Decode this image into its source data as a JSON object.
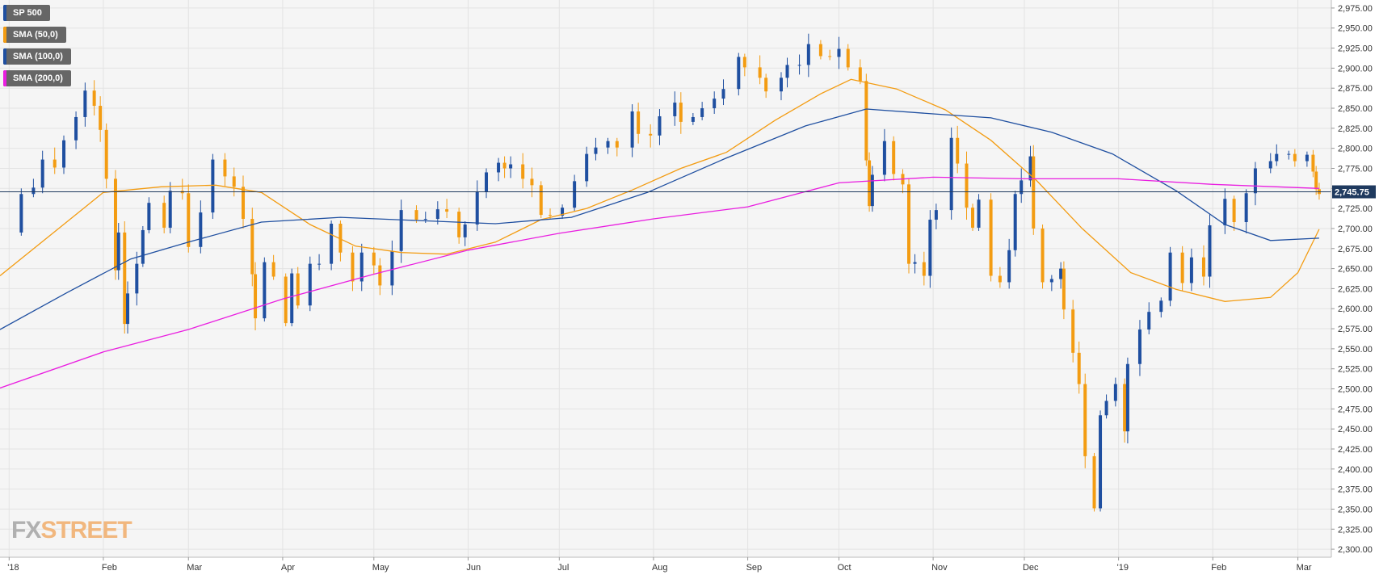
{
  "legend": [
    {
      "label": "SP 500",
      "color": "#1f4fa0"
    },
    {
      "label": "SMA (50,0)",
      "color": "#f39c12"
    },
    {
      "label": "SMA (100,0)",
      "color": "#1f4fa0"
    },
    {
      "label": "SMA (200,0)",
      "color": "#e91ee0"
    }
  ],
  "logo": {
    "fx": "FX",
    "street": "STREET"
  },
  "price_label": "2,745.75",
  "colors": {
    "up": "#1f4fa0",
    "down": "#f39c12",
    "sma50": "#f39c12",
    "sma100": "#1f4fa0",
    "sma200": "#e91ee0",
    "background": "#f5f5f5",
    "grid": "#e3e3e3",
    "price_line": "#1f3a5f"
  },
  "chart_data": {
    "type": "candlestick",
    "title": "",
    "ylim": [
      2290,
      2985
    ],
    "y_ticks": [
      "2,975.00",
      "2,950.00",
      "2,925.00",
      "2,900.00",
      "2,875.00",
      "2,850.00",
      "2,825.00",
      "2,800.00",
      "2,775.00",
      "2,750.00",
      "2,725.00",
      "2,700.00",
      "2,675.00",
      "2,650.00",
      "2,625.00",
      "2,600.00",
      "2,575.00",
      "2,550.00",
      "2,525.00",
      "2,500.00",
      "2,475.00",
      "2,450.00",
      "2,425.00",
      "2,400.00",
      "2,375.00",
      "2,350.00",
      "2,325.00",
      "2,300.00"
    ],
    "x_ticks": [
      {
        "label": "'18",
        "date": "2018-01-01"
      },
      {
        "label": "Feb",
        "date": "2018-02-01"
      },
      {
        "label": "Mar",
        "date": "2018-03-01"
      },
      {
        "label": "Apr",
        "date": "2018-04-01"
      },
      {
        "label": "May",
        "date": "2018-05-01"
      },
      {
        "label": "Jun",
        "date": "2018-06-01"
      },
      {
        "label": "Jul",
        "date": "2018-07-01"
      },
      {
        "label": "Aug",
        "date": "2018-08-01"
      },
      {
        "label": "Sep",
        "date": "2018-09-01"
      },
      {
        "label": "Oct",
        "date": "2018-10-01"
      },
      {
        "label": "Nov",
        "date": "2018-11-01"
      },
      {
        "label": "Dec",
        "date": "2018-12-01"
      },
      {
        "label": "'19",
        "date": "2019-01-01"
      },
      {
        "label": "Feb",
        "date": "2019-02-01"
      },
      {
        "label": "Mar",
        "date": "2019-03-01"
      }
    ],
    "x_range": [
      "2017-12-29",
      "2019-03-12"
    ],
    "last_price": 2745.75,
    "close_series": {
      "name": "SP 500",
      "points": [
        [
          "2018-01-02",
          2695
        ],
        [
          "2018-01-05",
          2743
        ],
        [
          "2018-01-09",
          2751
        ],
        [
          "2018-01-12",
          2786
        ],
        [
          "2018-01-16",
          2776
        ],
        [
          "2018-01-19",
          2810
        ],
        [
          "2018-01-23",
          2839
        ],
        [
          "2018-01-26",
          2872
        ],
        [
          "2018-01-29",
          2853
        ],
        [
          "2018-01-31",
          2823
        ],
        [
          "2018-02-02",
          2762
        ],
        [
          "2018-02-05",
          2648
        ],
        [
          "2018-02-06",
          2695
        ],
        [
          "2018-02-08",
          2581
        ],
        [
          "2018-02-09",
          2619
        ],
        [
          "2018-02-12",
          2656
        ],
        [
          "2018-02-14",
          2698
        ],
        [
          "2018-02-16",
          2732
        ],
        [
          "2018-02-21",
          2701
        ],
        [
          "2018-02-23",
          2747
        ],
        [
          "2018-02-27",
          2744
        ],
        [
          "2018-03-01",
          2677
        ],
        [
          "2018-03-05",
          2720
        ],
        [
          "2018-03-09",
          2786
        ],
        [
          "2018-03-13",
          2765
        ],
        [
          "2018-03-16",
          2752
        ],
        [
          "2018-03-19",
          2712
        ],
        [
          "2018-03-22",
          2643
        ],
        [
          "2018-03-23",
          2588
        ],
        [
          "2018-03-26",
          2658
        ],
        [
          "2018-03-29",
          2640
        ],
        [
          "2018-04-02",
          2582
        ],
        [
          "2018-04-04",
          2644
        ],
        [
          "2018-04-06",
          2604
        ],
        [
          "2018-04-10",
          2656
        ],
        [
          "2018-04-13",
          2656
        ],
        [
          "2018-04-17",
          2706
        ],
        [
          "2018-04-20",
          2670
        ],
        [
          "2018-04-24",
          2634
        ],
        [
          "2018-04-27",
          2670
        ],
        [
          "2018-05-01",
          2654
        ],
        [
          "2018-05-03",
          2629
        ],
        [
          "2018-05-07",
          2672
        ],
        [
          "2018-05-10",
          2723
        ],
        [
          "2018-05-15",
          2711
        ],
        [
          "2018-05-18",
          2712
        ],
        [
          "2018-05-22",
          2724
        ],
        [
          "2018-05-25",
          2721
        ],
        [
          "2018-05-29",
          2689
        ],
        [
          "2018-05-31",
          2705
        ],
        [
          "2018-06-04",
          2746
        ],
        [
          "2018-06-07",
          2770
        ],
        [
          "2018-06-11",
          2782
        ],
        [
          "2018-06-13",
          2775
        ],
        [
          "2018-06-15",
          2780
        ],
        [
          "2018-06-19",
          2762
        ],
        [
          "2018-06-22",
          2754
        ],
        [
          "2018-06-25",
          2717
        ],
        [
          "2018-06-28",
          2716
        ],
        [
          "2018-07-02",
          2726
        ],
        [
          "2018-07-06",
          2759
        ],
        [
          "2018-07-10",
          2793
        ],
        [
          "2018-07-13",
          2801
        ],
        [
          "2018-07-17",
          2809
        ],
        [
          "2018-07-20",
          2801
        ],
        [
          "2018-07-25",
          2846
        ],
        [
          "2018-07-27",
          2818
        ],
        [
          "2018-07-31",
          2816
        ],
        [
          "2018-08-03",
          2840
        ],
        [
          "2018-08-08",
          2857
        ],
        [
          "2018-08-10",
          2833
        ],
        [
          "2018-08-14",
          2839
        ],
        [
          "2018-08-17",
          2850
        ],
        [
          "2018-08-21",
          2862
        ],
        [
          "2018-08-24",
          2874
        ],
        [
          "2018-08-29",
          2914
        ],
        [
          "2018-08-31",
          2901
        ],
        [
          "2018-09-05",
          2888
        ],
        [
          "2018-09-07",
          2871
        ],
        [
          "2018-09-12",
          2888
        ],
        [
          "2018-09-14",
          2904
        ],
        [
          "2018-09-18",
          2904
        ],
        [
          "2018-09-21",
          2930
        ],
        [
          "2018-09-25",
          2915
        ],
        [
          "2018-09-28",
          2914
        ],
        [
          "2018-10-01",
          2924
        ],
        [
          "2018-10-04",
          2901
        ],
        [
          "2018-10-08",
          2884
        ],
        [
          "2018-10-10",
          2785
        ],
        [
          "2018-10-11",
          2728
        ],
        [
          "2018-10-12",
          2767
        ],
        [
          "2018-10-16",
          2809
        ],
        [
          "2018-10-19",
          2768
        ],
        [
          "2018-10-22",
          2755
        ],
        [
          "2018-10-24",
          2656
        ],
        [
          "2018-10-26",
          2658
        ],
        [
          "2018-10-29",
          2641
        ],
        [
          "2018-10-31",
          2711
        ],
        [
          "2018-11-02",
          2723
        ],
        [
          "2018-11-07",
          2813
        ],
        [
          "2018-11-09",
          2781
        ],
        [
          "2018-11-12",
          2726
        ],
        [
          "2018-11-14",
          2701
        ],
        [
          "2018-11-16",
          2736
        ],
        [
          "2018-11-20",
          2641
        ],
        [
          "2018-11-23",
          2633
        ],
        [
          "2018-11-26",
          2673
        ],
        [
          "2018-11-28",
          2743
        ],
        [
          "2018-11-30",
          2760
        ],
        [
          "2018-12-03",
          2790
        ],
        [
          "2018-12-04",
          2700
        ],
        [
          "2018-12-07",
          2633
        ],
        [
          "2018-12-10",
          2637
        ],
        [
          "2018-12-13",
          2650
        ],
        [
          "2018-12-14",
          2599
        ],
        [
          "2018-12-17",
          2545
        ],
        [
          "2018-12-19",
          2506
        ],
        [
          "2018-12-21",
          2416
        ],
        [
          "2018-12-24",
          2351
        ],
        [
          "2018-12-26",
          2467
        ],
        [
          "2018-12-28",
          2485
        ],
        [
          "2018-12-31",
          2506
        ],
        [
          "2019-01-03",
          2447
        ],
        [
          "2019-01-04",
          2531
        ],
        [
          "2019-01-08",
          2574
        ],
        [
          "2019-01-11",
          2596
        ],
        [
          "2019-01-15",
          2610
        ],
        [
          "2019-01-18",
          2670
        ],
        [
          "2019-01-22",
          2632
        ],
        [
          "2019-01-25",
          2664
        ],
        [
          "2019-01-29",
          2640
        ],
        [
          "2019-01-31",
          2704
        ],
        [
          "2019-02-05",
          2737
        ],
        [
          "2019-02-08",
          2708
        ],
        [
          "2019-02-12",
          2744
        ],
        [
          "2019-02-15",
          2775
        ],
        [
          "2019-02-20",
          2784
        ],
        [
          "2019-02-22",
          2793
        ],
        [
          "2019-02-26",
          2793
        ],
        [
          "2019-02-28",
          2784
        ],
        [
          "2019-03-04",
          2792
        ],
        [
          "2019-03-06",
          2771
        ],
        [
          "2019-03-07",
          2749
        ],
        [
          "2019-03-08",
          2743
        ]
      ]
    },
    "series": [
      {
        "name": "SMA (50,0)",
        "color": "#f39c12",
        "points": [
          [
            "2017-12-29",
            2641
          ],
          [
            "2018-01-15",
            2693
          ],
          [
            "2018-02-01",
            2745
          ],
          [
            "2018-02-20",
            2752
          ],
          [
            "2018-03-10",
            2754
          ],
          [
            "2018-03-25",
            2745
          ],
          [
            "2018-04-10",
            2705
          ],
          [
            "2018-04-25",
            2678
          ],
          [
            "2018-05-10",
            2670
          ],
          [
            "2018-05-25",
            2668
          ],
          [
            "2018-06-10",
            2683
          ],
          [
            "2018-06-25",
            2711
          ],
          [
            "2018-07-10",
            2725
          ],
          [
            "2018-07-25",
            2748
          ],
          [
            "2018-08-10",
            2775
          ],
          [
            "2018-08-25",
            2795
          ],
          [
            "2018-09-10",
            2835
          ],
          [
            "2018-09-25",
            2868
          ],
          [
            "2018-10-05",
            2886
          ],
          [
            "2018-10-20",
            2874
          ],
          [
            "2018-11-05",
            2848
          ],
          [
            "2018-11-20",
            2810
          ],
          [
            "2018-12-05",
            2760
          ],
          [
            "2018-12-20",
            2700
          ],
          [
            "2019-01-05",
            2645
          ],
          [
            "2019-01-20",
            2624
          ],
          [
            "2019-02-05",
            2609
          ],
          [
            "2019-02-20",
            2614
          ],
          [
            "2019-03-01",
            2645
          ],
          [
            "2019-03-08",
            2699
          ]
        ]
      },
      {
        "name": "SMA (100,0)",
        "color": "#1f4fa0",
        "points": [
          [
            "2017-12-29",
            2574
          ],
          [
            "2018-01-20",
            2620
          ],
          [
            "2018-02-10",
            2662
          ],
          [
            "2018-03-01",
            2683
          ],
          [
            "2018-03-25",
            2708
          ],
          [
            "2018-04-20",
            2714
          ],
          [
            "2018-05-15",
            2710
          ],
          [
            "2018-06-10",
            2706
          ],
          [
            "2018-07-05",
            2714
          ],
          [
            "2018-07-30",
            2745
          ],
          [
            "2018-08-25",
            2788
          ],
          [
            "2018-09-20",
            2828
          ],
          [
            "2018-10-10",
            2849
          ],
          [
            "2018-11-01",
            2843
          ],
          [
            "2018-11-20",
            2838
          ],
          [
            "2018-12-10",
            2820
          ],
          [
            "2018-12-30",
            2793
          ],
          [
            "2019-01-20",
            2747
          ],
          [
            "2019-02-05",
            2705
          ],
          [
            "2019-02-20",
            2685
          ],
          [
            "2019-03-08",
            2688
          ]
        ]
      },
      {
        "name": "SMA (200,0)",
        "color": "#e91ee0",
        "points": [
          [
            "2017-12-29",
            2501
          ],
          [
            "2018-02-01",
            2546
          ],
          [
            "2018-03-01",
            2574
          ],
          [
            "2018-04-01",
            2612
          ],
          [
            "2018-05-01",
            2643
          ],
          [
            "2018-06-01",
            2673
          ],
          [
            "2018-07-01",
            2694
          ],
          [
            "2018-08-01",
            2712
          ],
          [
            "2018-09-01",
            2727
          ],
          [
            "2018-10-01",
            2757
          ],
          [
            "2018-11-01",
            2764
          ],
          [
            "2018-12-01",
            2762
          ],
          [
            "2019-01-01",
            2762
          ],
          [
            "2019-02-01",
            2755
          ],
          [
            "2019-03-01",
            2751
          ],
          [
            "2019-03-08",
            2750
          ]
        ]
      }
    ]
  }
}
